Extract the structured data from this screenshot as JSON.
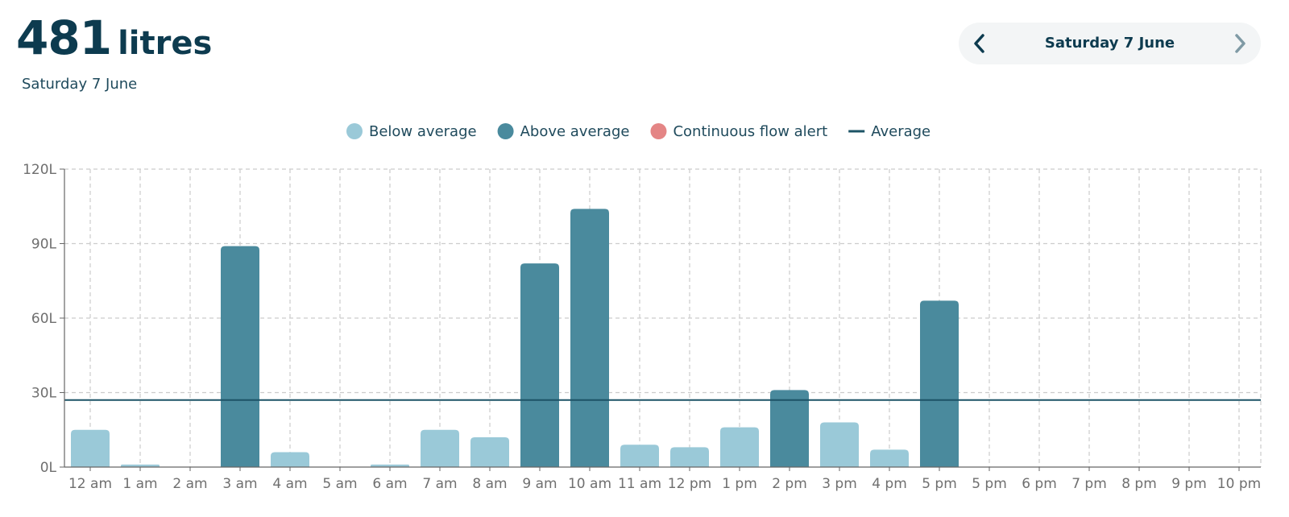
{
  "header": {
    "total_value": "481",
    "total_unit": "litres",
    "subtitle": "Saturday 7 June"
  },
  "date_nav": {
    "label": "Saturday 7 June",
    "prev_icon": "chevron-left-icon",
    "next_icon": "chevron-right-icon"
  },
  "colors": {
    "below": "#9ac9d8",
    "above": "#4a8a9d",
    "alert": "#e48585",
    "average": "#1c5366",
    "grid": "#cccccc",
    "axis": "#666666"
  },
  "legend": [
    {
      "key": "below",
      "label": "Below average",
      "marker": "circle"
    },
    {
      "key": "above",
      "label": "Above average",
      "marker": "circle"
    },
    {
      "key": "alert",
      "label": "Continuous flow alert",
      "marker": "circle"
    },
    {
      "key": "average",
      "label": "Average",
      "marker": "line"
    }
  ],
  "chart_data": {
    "type": "bar",
    "title": "",
    "xlabel": "",
    "ylabel": "",
    "ylim": [
      0,
      120
    ],
    "y_ticks": [
      0,
      30,
      60,
      90,
      120
    ],
    "y_tick_labels": [
      "0L",
      "30L",
      "60L",
      "90L",
      "120L"
    ],
    "grid": true,
    "legend_position": "top-center",
    "categories": [
      "12 am",
      "1 am",
      "2 am",
      "3 am",
      "4 am",
      "5 am",
      "6 am",
      "7 am",
      "8 am",
      "9 am",
      "10 am",
      "11 am",
      "12 pm",
      "1 pm",
      "2 pm",
      "3 pm",
      "4 pm",
      "5 pm",
      "5 pm",
      "6 pm",
      "7 pm",
      "8 pm",
      "9 pm",
      "10 pm"
    ],
    "values": [
      15,
      1,
      0,
      89,
      6,
      0,
      1,
      15,
      12,
      82,
      104,
      9,
      8,
      16,
      31,
      18,
      7,
      67,
      0,
      0,
      0,
      0,
      0,
      0
    ],
    "status": [
      "below",
      "below",
      "below",
      "above",
      "below",
      "below",
      "below",
      "below",
      "below",
      "above",
      "above",
      "below",
      "below",
      "below",
      "above",
      "below",
      "below",
      "above",
      "below",
      "below",
      "below",
      "below",
      "below",
      "below"
    ],
    "average": 27
  }
}
